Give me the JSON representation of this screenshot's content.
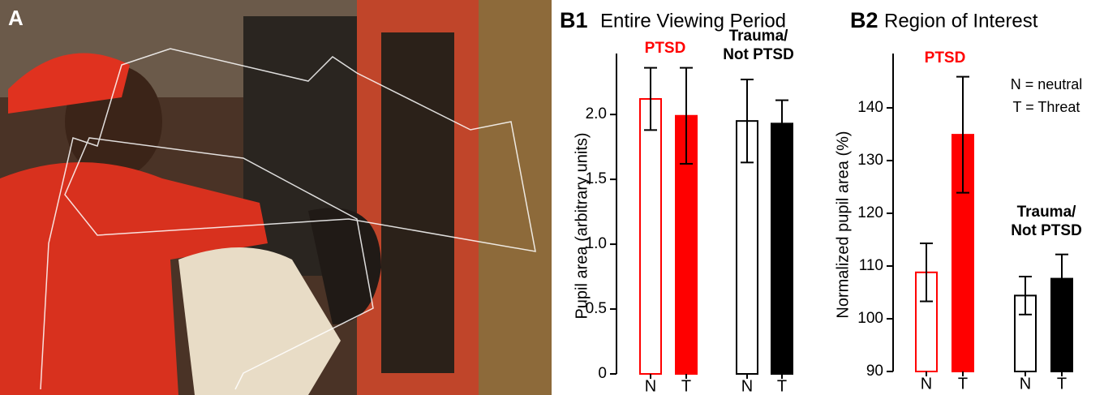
{
  "photo_panel": {
    "label": "A"
  },
  "chart_data": [
    {
      "type": "bar",
      "panel_label": "B1",
      "title": "Entire Viewing Period",
      "y_label": "Pupil area (arbitrary units)",
      "categories": [
        "N",
        "T",
        "N",
        "T"
      ],
      "values": [
        2.12,
        1.99,
        1.95,
        1.93
      ],
      "errors": [
        0.24,
        0.37,
        0.32,
        0.18
      ],
      "bar_colors": [
        "#ff0000",
        "#ff0000",
        "#000000",
        "#000000"
      ],
      "filled": [
        false,
        true,
        false,
        true
      ],
      "groups": [
        {
          "name": [
            "PTSD"
          ],
          "color": "#ff0000"
        },
        {
          "name": [
            "Trauma/",
            "Not PTSD"
          ],
          "color": "#000000"
        }
      ],
      "ylim": [
        0,
        2.47
      ],
      "yticks": [
        0,
        0.5,
        {
          "value": 1,
          "label": "1.0"
        },
        1.5,
        {
          "value": 2,
          "label": "2.0"
        }
      ]
    },
    {
      "type": "bar",
      "panel_label": "B2",
      "title": "Region of Interest",
      "y_label": "Normalized pupil area (%)",
      "categories": [
        "N",
        "T",
        "N",
        "T"
      ],
      "values": [
        108.8,
        134.9,
        104.4,
        107.6
      ],
      "errors": [
        5.5,
        11,
        3.6,
        4.6
      ],
      "bar_colors": [
        "#ff0000",
        "#ff0000",
        "#000000",
        "#000000"
      ],
      "filled": [
        false,
        true,
        false,
        true
      ],
      "groups": [
        {
          "name": [
            "PTSD"
          ],
          "color": "#ff0000"
        },
        {
          "name": [
            "Trauma/",
            "Not PTSD"
          ],
          "color": "#000000"
        }
      ],
      "annotations": [
        "N = neutral",
        "T = Threat"
      ],
      "ylim": [
        90,
        150.3
      ],
      "yticks": [
        90,
        100,
        110,
        120,
        130,
        140
      ]
    }
  ]
}
